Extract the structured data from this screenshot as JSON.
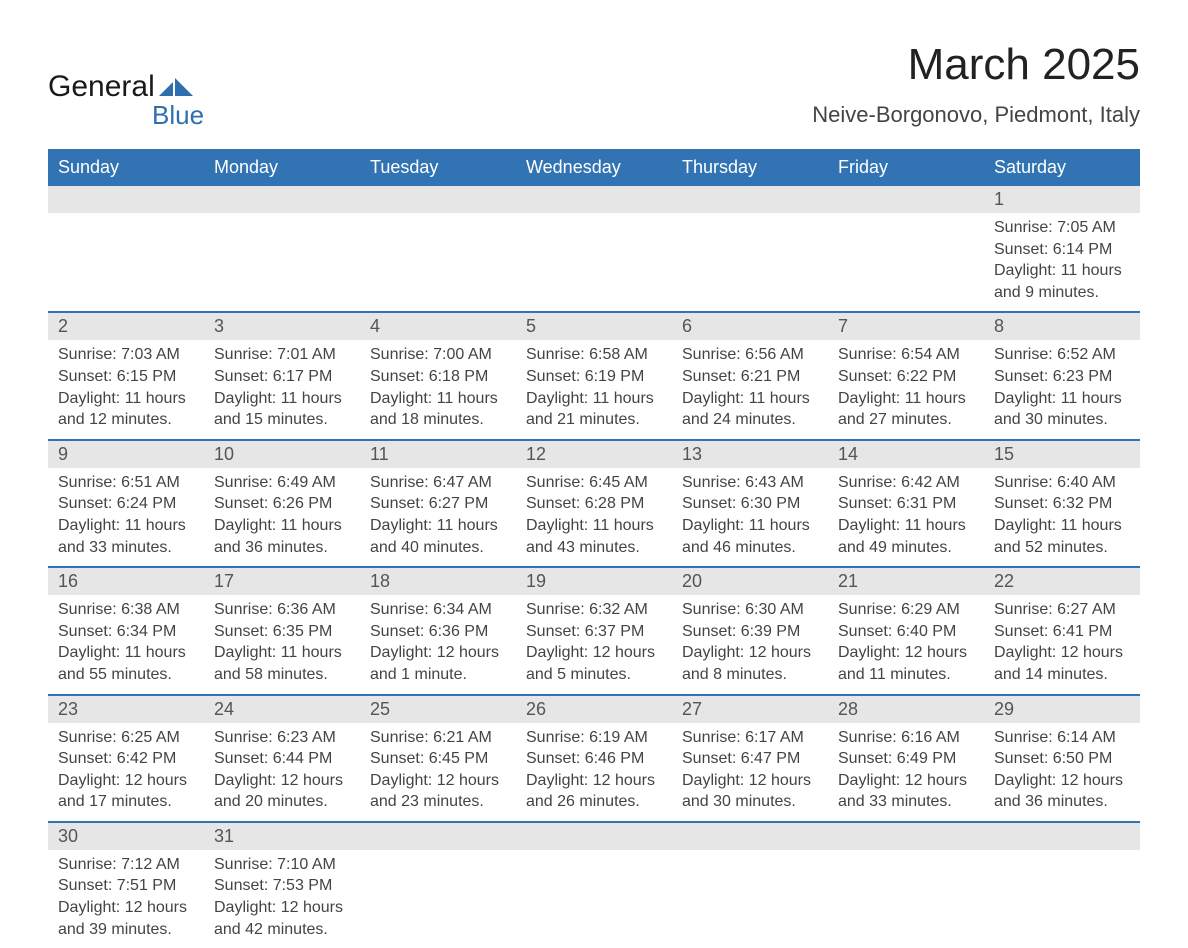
{
  "logo": {
    "word1": "General",
    "word2": "Blue",
    "mark_color": "#2f6fad"
  },
  "header": {
    "title": "March 2025",
    "location": "Neive-Borgonovo, Piedmont, Italy"
  },
  "theme": {
    "header_bg": "#3173b3",
    "header_text": "#ffffff",
    "daynum_bg": "#e6e6e6",
    "daynum_text": "#555555",
    "body_text": "#444444",
    "row_divider": "#3173b3",
    "page_bg": "#ffffff",
    "title_fontsize": 44,
    "location_fontsize": 22,
    "weekday_fontsize": 18,
    "daynum_fontsize": 18,
    "body_fontsize": 16
  },
  "weekdays": [
    "Sunday",
    "Monday",
    "Tuesday",
    "Wednesday",
    "Thursday",
    "Friday",
    "Saturday"
  ],
  "weeks": [
    [
      null,
      null,
      null,
      null,
      null,
      null,
      {
        "n": "1",
        "sunrise": "Sunrise: 7:05 AM",
        "sunset": "Sunset: 6:14 PM",
        "daylight": "Daylight: 11 hours and 9 minutes."
      }
    ],
    [
      {
        "n": "2",
        "sunrise": "Sunrise: 7:03 AM",
        "sunset": "Sunset: 6:15 PM",
        "daylight": "Daylight: 11 hours and 12 minutes."
      },
      {
        "n": "3",
        "sunrise": "Sunrise: 7:01 AM",
        "sunset": "Sunset: 6:17 PM",
        "daylight": "Daylight: 11 hours and 15 minutes."
      },
      {
        "n": "4",
        "sunrise": "Sunrise: 7:00 AM",
        "sunset": "Sunset: 6:18 PM",
        "daylight": "Daylight: 11 hours and 18 minutes."
      },
      {
        "n": "5",
        "sunrise": "Sunrise: 6:58 AM",
        "sunset": "Sunset: 6:19 PM",
        "daylight": "Daylight: 11 hours and 21 minutes."
      },
      {
        "n": "6",
        "sunrise": "Sunrise: 6:56 AM",
        "sunset": "Sunset: 6:21 PM",
        "daylight": "Daylight: 11 hours and 24 minutes."
      },
      {
        "n": "7",
        "sunrise": "Sunrise: 6:54 AM",
        "sunset": "Sunset: 6:22 PM",
        "daylight": "Daylight: 11 hours and 27 minutes."
      },
      {
        "n": "8",
        "sunrise": "Sunrise: 6:52 AM",
        "sunset": "Sunset: 6:23 PM",
        "daylight": "Daylight: 11 hours and 30 minutes."
      }
    ],
    [
      {
        "n": "9",
        "sunrise": "Sunrise: 6:51 AM",
        "sunset": "Sunset: 6:24 PM",
        "daylight": "Daylight: 11 hours and 33 minutes."
      },
      {
        "n": "10",
        "sunrise": "Sunrise: 6:49 AM",
        "sunset": "Sunset: 6:26 PM",
        "daylight": "Daylight: 11 hours and 36 minutes."
      },
      {
        "n": "11",
        "sunrise": "Sunrise: 6:47 AM",
        "sunset": "Sunset: 6:27 PM",
        "daylight": "Daylight: 11 hours and 40 minutes."
      },
      {
        "n": "12",
        "sunrise": "Sunrise: 6:45 AM",
        "sunset": "Sunset: 6:28 PM",
        "daylight": "Daylight: 11 hours and 43 minutes."
      },
      {
        "n": "13",
        "sunrise": "Sunrise: 6:43 AM",
        "sunset": "Sunset: 6:30 PM",
        "daylight": "Daylight: 11 hours and 46 minutes."
      },
      {
        "n": "14",
        "sunrise": "Sunrise: 6:42 AM",
        "sunset": "Sunset: 6:31 PM",
        "daylight": "Daylight: 11 hours and 49 minutes."
      },
      {
        "n": "15",
        "sunrise": "Sunrise: 6:40 AM",
        "sunset": "Sunset: 6:32 PM",
        "daylight": "Daylight: 11 hours and 52 minutes."
      }
    ],
    [
      {
        "n": "16",
        "sunrise": "Sunrise: 6:38 AM",
        "sunset": "Sunset: 6:34 PM",
        "daylight": "Daylight: 11 hours and 55 minutes."
      },
      {
        "n": "17",
        "sunrise": "Sunrise: 6:36 AM",
        "sunset": "Sunset: 6:35 PM",
        "daylight": "Daylight: 11 hours and 58 minutes."
      },
      {
        "n": "18",
        "sunrise": "Sunrise: 6:34 AM",
        "sunset": "Sunset: 6:36 PM",
        "daylight": "Daylight: 12 hours and 1 minute."
      },
      {
        "n": "19",
        "sunrise": "Sunrise: 6:32 AM",
        "sunset": "Sunset: 6:37 PM",
        "daylight": "Daylight: 12 hours and 5 minutes."
      },
      {
        "n": "20",
        "sunrise": "Sunrise: 6:30 AM",
        "sunset": "Sunset: 6:39 PM",
        "daylight": "Daylight: 12 hours and 8 minutes."
      },
      {
        "n": "21",
        "sunrise": "Sunrise: 6:29 AM",
        "sunset": "Sunset: 6:40 PM",
        "daylight": "Daylight: 12 hours and 11 minutes."
      },
      {
        "n": "22",
        "sunrise": "Sunrise: 6:27 AM",
        "sunset": "Sunset: 6:41 PM",
        "daylight": "Daylight: 12 hours and 14 minutes."
      }
    ],
    [
      {
        "n": "23",
        "sunrise": "Sunrise: 6:25 AM",
        "sunset": "Sunset: 6:42 PM",
        "daylight": "Daylight: 12 hours and 17 minutes."
      },
      {
        "n": "24",
        "sunrise": "Sunrise: 6:23 AM",
        "sunset": "Sunset: 6:44 PM",
        "daylight": "Daylight: 12 hours and 20 minutes."
      },
      {
        "n": "25",
        "sunrise": "Sunrise: 6:21 AM",
        "sunset": "Sunset: 6:45 PM",
        "daylight": "Daylight: 12 hours and 23 minutes."
      },
      {
        "n": "26",
        "sunrise": "Sunrise: 6:19 AM",
        "sunset": "Sunset: 6:46 PM",
        "daylight": "Daylight: 12 hours and 26 minutes."
      },
      {
        "n": "27",
        "sunrise": "Sunrise: 6:17 AM",
        "sunset": "Sunset: 6:47 PM",
        "daylight": "Daylight: 12 hours and 30 minutes."
      },
      {
        "n": "28",
        "sunrise": "Sunrise: 6:16 AM",
        "sunset": "Sunset: 6:49 PM",
        "daylight": "Daylight: 12 hours and 33 minutes."
      },
      {
        "n": "29",
        "sunrise": "Sunrise: 6:14 AM",
        "sunset": "Sunset: 6:50 PM",
        "daylight": "Daylight: 12 hours and 36 minutes."
      }
    ],
    [
      {
        "n": "30",
        "sunrise": "Sunrise: 7:12 AM",
        "sunset": "Sunset: 7:51 PM",
        "daylight": "Daylight: 12 hours and 39 minutes."
      },
      {
        "n": "31",
        "sunrise": "Sunrise: 7:10 AM",
        "sunset": "Sunset: 7:53 PM",
        "daylight": "Daylight: 12 hours and 42 minutes."
      },
      null,
      null,
      null,
      null,
      null
    ]
  ]
}
